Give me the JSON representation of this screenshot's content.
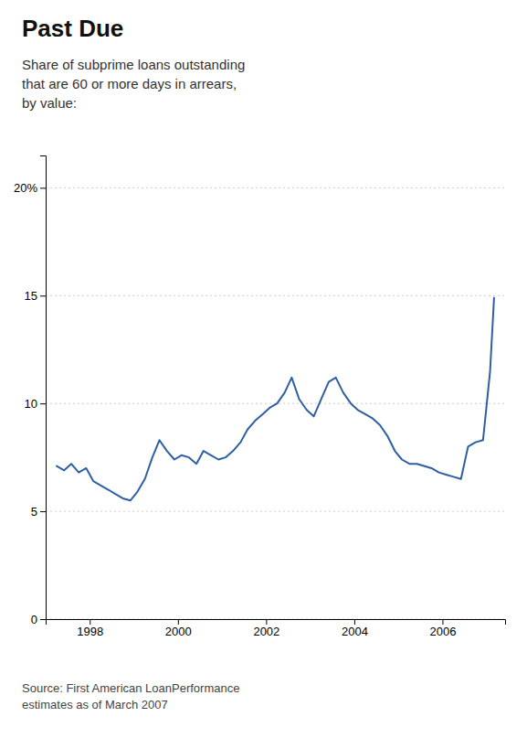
{
  "chart_data": {
    "type": "line",
    "title": "Past Due",
    "subtitle": "Share of subprime loans outstanding\nthat are 60 or more days in arrears,\nby value:",
    "source": "Source: First American LoanPerformance\nestimates as of March 2007",
    "color": "#2e5fa3",
    "x": [
      1997.25,
      1997.42,
      1997.58,
      1997.75,
      1997.92,
      1998.08,
      1998.25,
      1998.42,
      1998.58,
      1998.75,
      1998.92,
      1999.08,
      1999.25,
      1999.42,
      1999.58,
      1999.75,
      1999.92,
      2000.08,
      2000.25,
      2000.42,
      2000.58,
      2000.75,
      2000.92,
      2001.08,
      2001.25,
      2001.42,
      2001.58,
      2001.75,
      2001.92,
      2002.08,
      2002.25,
      2002.42,
      2002.58,
      2002.75,
      2002.92,
      2003.08,
      2003.25,
      2003.42,
      2003.58,
      2003.75,
      2003.92,
      2004.08,
      2004.25,
      2004.42,
      2004.58,
      2004.75,
      2004.92,
      2005.08,
      2005.25,
      2005.42,
      2005.58,
      2005.75,
      2005.92,
      2006.08,
      2006.25,
      2006.42,
      2006.58,
      2006.75,
      2006.92,
      2007.08,
      2007.17
    ],
    "values": [
      7.1,
      6.9,
      7.2,
      6.8,
      7.0,
      6.4,
      6.2,
      6.0,
      5.8,
      5.6,
      5.5,
      5.9,
      6.5,
      7.5,
      8.3,
      7.8,
      7.4,
      7.6,
      7.5,
      7.2,
      7.8,
      7.6,
      7.4,
      7.5,
      7.8,
      8.2,
      8.8,
      9.2,
      9.5,
      9.8,
      10.0,
      10.5,
      11.2,
      10.2,
      9.7,
      9.4,
      10.2,
      11.0,
      11.2,
      10.5,
      10.0,
      9.7,
      9.5,
      9.3,
      9.0,
      8.5,
      7.8,
      7.4,
      7.2,
      7.2,
      7.1,
      7.0,
      6.8,
      6.7,
      6.6,
      6.5,
      8.0,
      8.2,
      8.3,
      11.5,
      14.9
    ],
    "xlim": [
      1997.0,
      2007.42
    ],
    "xticks": [
      1998,
      2000,
      2002,
      2004,
      2006
    ],
    "ylim": [
      0,
      21.5
    ],
    "yticks": [
      0,
      5,
      10,
      15,
      {
        "value": 20,
        "label": "20%"
      }
    ],
    "grid": true
  }
}
